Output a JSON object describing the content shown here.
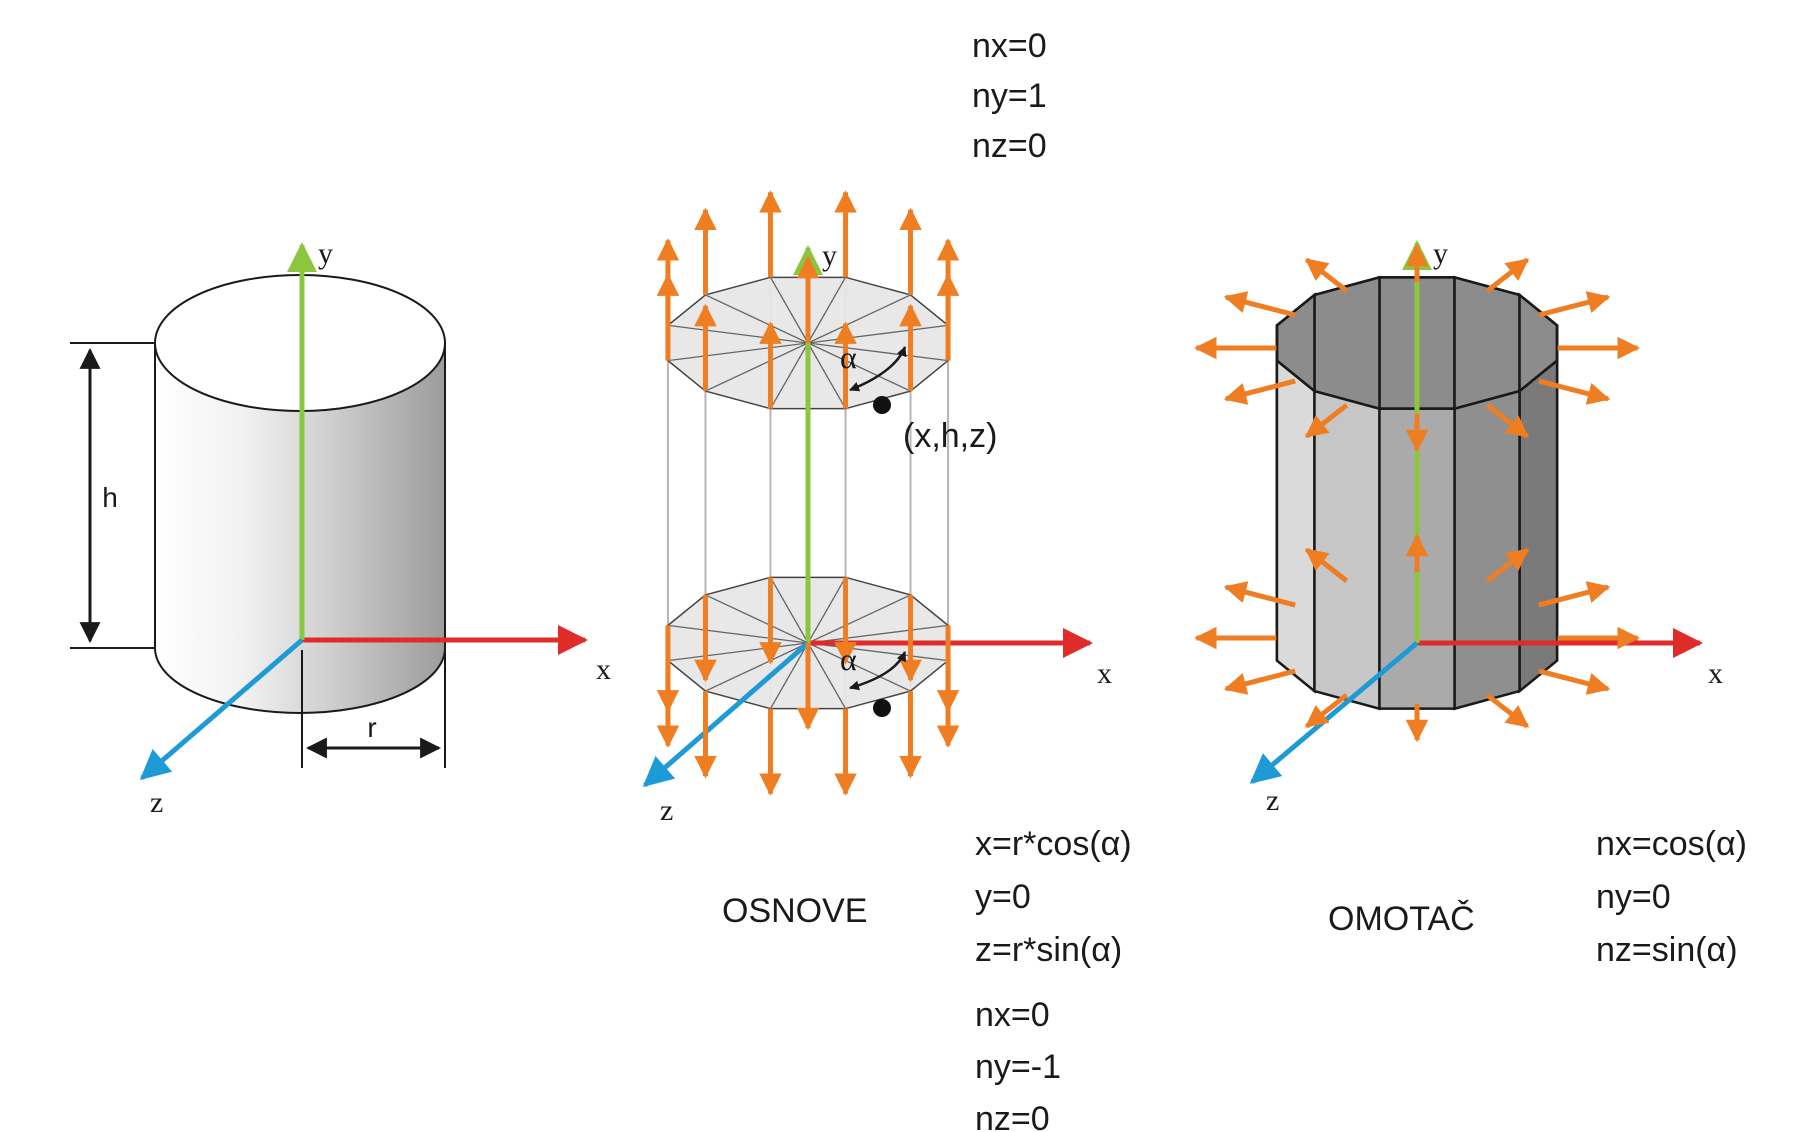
{
  "colors": {
    "x_axis": "#e02b2b",
    "y_axis": "#8cc63f",
    "z_axis": "#1e9ad6",
    "normal": "#ef7d22",
    "outline": "#1a1a1a",
    "face_light": "#e6e6e6",
    "face_dark": "#9a9a9a"
  },
  "figure1": {
    "axis_x": "x",
    "axis_y": "y",
    "axis_z": "z",
    "height": "h",
    "radius": "r"
  },
  "figure2": {
    "caption": "OSNOVE",
    "axis_x": "x",
    "axis_y": "y",
    "axis_z": "z",
    "angle_top": "α",
    "angle_bottom": "α",
    "point": "(x,h,z)",
    "top_normal": [
      "nx=0",
      "ny=1",
      "nz=0"
    ],
    "vertex": [
      "x=r*cos(α)",
      "y=0",
      "z=r*sin(α)"
    ],
    "bottom_normal": [
      "nx=0",
      "ny=-1",
      "nz=0"
    ]
  },
  "figure3": {
    "caption": "OMOTAČ",
    "axis_x": "x",
    "axis_y": "y",
    "axis_z": "z",
    "normal": [
      "nx=cos(α)",
      "ny=0",
      "nz=sin(α)"
    ]
  }
}
